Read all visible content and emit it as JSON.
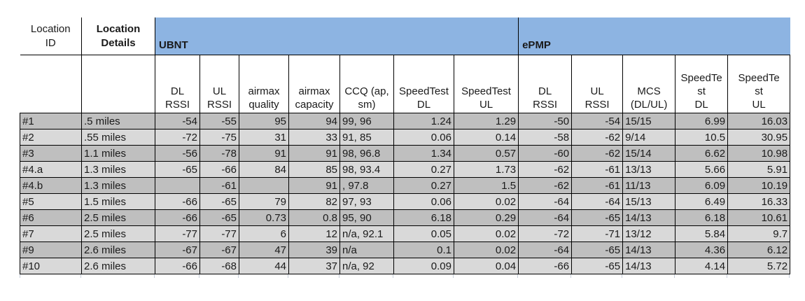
{
  "table": {
    "group_header": {
      "location_id": "Location\nID",
      "location_details": "Location\nDetails",
      "ubnt_label": "UBNT",
      "epmp_label": "ePMP"
    },
    "sub_headers": {
      "ubnt": [
        "DL\nRSSI",
        "UL\nRSSI",
        "airmax\nquality",
        "airmax\ncapacity",
        "CCQ (ap,\nsm)",
        "SpeedTest\nDL",
        "SpeedTest\nUL"
      ],
      "epmp": [
        "DL\nRSSI",
        "UL\nRSSI",
        "MCS\n(DL/UL)",
        "SpeedTe\nst\nDL",
        "SpeedTe\nst\nUL"
      ]
    },
    "rows": [
      {
        "id": "#1",
        "details": ".5 miles",
        "ubnt": [
          "-54",
          "-55",
          "95",
          "94",
          "99, 96",
          "1.24",
          "1.29"
        ],
        "epmp": [
          "-50",
          "-54",
          "15/15",
          "6.99",
          "16.03"
        ]
      },
      {
        "id": "#2",
        "details": ".55 miles",
        "ubnt": [
          "-72",
          "-75",
          "31",
          "33",
          "91, 85",
          "0.06",
          "0.14"
        ],
        "epmp": [
          "-58",
          "-62",
          "9/14",
          "10.5",
          "30.95"
        ]
      },
      {
        "id": "#3",
        "details": "1.1  miles",
        "ubnt": [
          "-56",
          "-78",
          "91",
          "91",
          "98, 96.8",
          "1.34",
          "0.57"
        ],
        "epmp": [
          "-60",
          "-62",
          "15/14",
          "6.62",
          "10.98"
        ]
      },
      {
        "id": "#4.a",
        "details": "1.3 miles",
        "ubnt": [
          "-65",
          "-66",
          "84",
          "85",
          "98, 93.4",
          "0.27",
          "1.73"
        ],
        "epmp": [
          "-62",
          "-61",
          "13/13",
          "5.66",
          "5.91"
        ]
      },
      {
        "id": "#4.b",
        "details": "1.3 miles",
        "ubnt": [
          "",
          "-61",
          "",
          "91",
          ", 97.8",
          "0.27",
          "1.5"
        ],
        "epmp": [
          "-62",
          "-61",
          "11/13",
          "6.09",
          "10.19"
        ]
      },
      {
        "id": "#5",
        "details": "1.5 miles",
        "ubnt": [
          "-66",
          "-65",
          "79",
          "82",
          "97, 93",
          "0.06",
          "0.02"
        ],
        "epmp": [
          "-64",
          "-64",
          "15/13",
          "6.49",
          "16.33"
        ]
      },
      {
        "id": "#6",
        "details": "2.5 miles",
        "ubnt": [
          "-66",
          "-65",
          "0.73",
          "0.8",
          "95, 90",
          "6.18",
          "0.29"
        ],
        "epmp": [
          "-64",
          "-65",
          "14/13",
          "6.18",
          "10.61"
        ]
      },
      {
        "id": "#7",
        "details": "2.5 miles",
        "ubnt": [
          "-77",
          "-77",
          "6",
          "12",
          "n/a, 92.1",
          "0.05",
          "0.02"
        ],
        "epmp": [
          "-72",
          "-71",
          "13/12",
          "5.84",
          "9.7"
        ]
      },
      {
        "id": "#9",
        "details": "2.6 miles",
        "ubnt": [
          "-67",
          "-67",
          "47",
          "39",
          "n/a",
          "0.1",
          "0.02"
        ],
        "epmp": [
          "-64",
          "-65",
          "14/13",
          "4.36",
          "6.12"
        ]
      },
      {
        "id": "#10",
        "details": "2.6 miles",
        "ubnt": [
          "-66",
          "-68",
          "44",
          "37",
          "n/a, 92",
          "0.09",
          "0.04"
        ],
        "epmp": [
          "-66",
          "-65",
          "14/13",
          "4.14",
          "5.72"
        ]
      }
    ],
    "colors": {
      "group_fill": "#8db4e2",
      "row_dark": "#bfbfbf",
      "row_light": "#d9d9d9",
      "border": "#000000",
      "gridline_stub": "#c8cfda",
      "text": "#1a1a1a"
    }
  }
}
